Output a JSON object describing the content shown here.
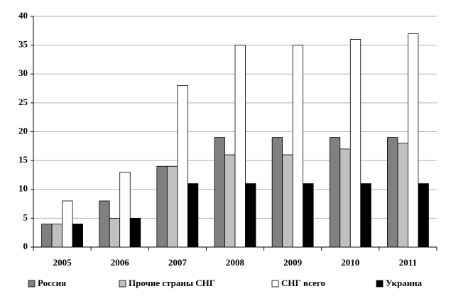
{
  "chart_data": {
    "type": "bar",
    "categories": [
      "2005",
      "2006",
      "2007",
      "2008",
      "2009",
      "2010",
      "2011"
    ],
    "series": [
      {
        "name": "Россия",
        "color": "#808080",
        "values": [
          4,
          8,
          14,
          19,
          19,
          19,
          19
        ]
      },
      {
        "name": "Прочие страны СНГ",
        "color": "#c0c0c0",
        "values": [
          4,
          5,
          14,
          16,
          16,
          17,
          18
        ]
      },
      {
        "name": "СНГ всего",
        "color": "#ffffff",
        "values": [
          8,
          13,
          28,
          35,
          35,
          36,
          37
        ]
      },
      {
        "name": "Украина",
        "color": "#000000",
        "values": [
          4,
          5,
          11,
          11,
          11,
          11,
          11
        ]
      }
    ],
    "ylim": [
      0,
      40
    ],
    "yticks": [
      0,
      5,
      10,
      15,
      20,
      25,
      30,
      35,
      40
    ],
    "grid": true,
    "legend": "bottom"
  }
}
